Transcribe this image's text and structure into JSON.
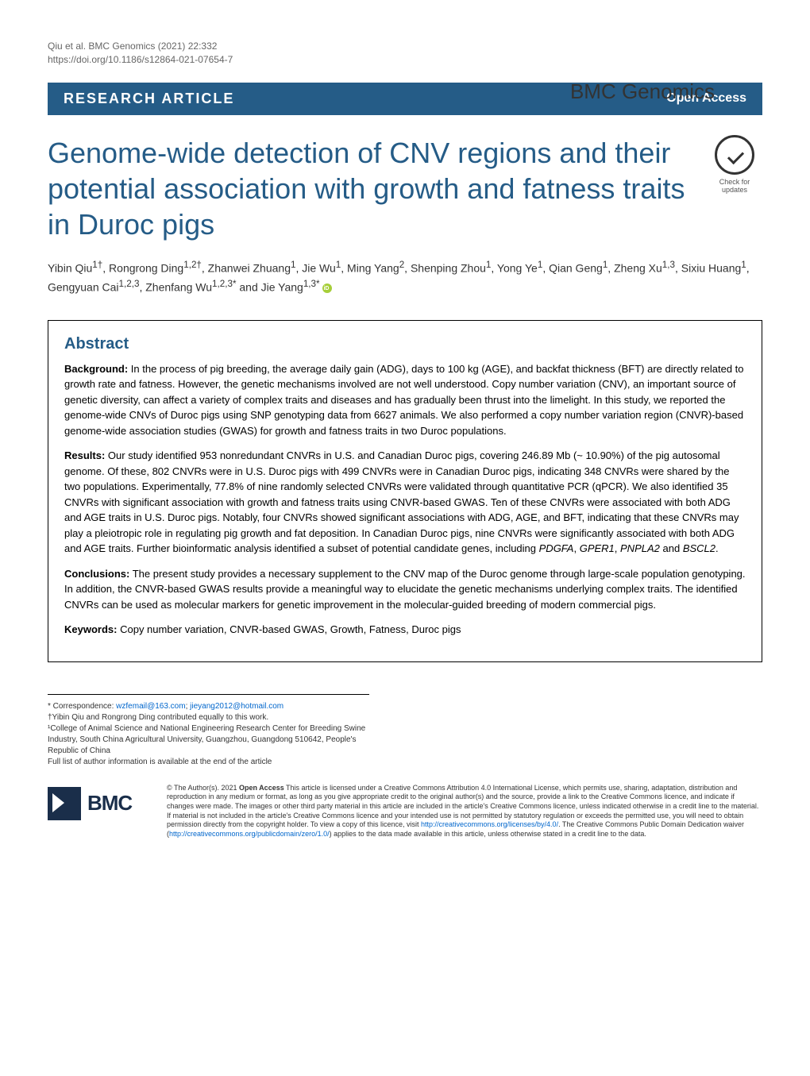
{
  "meta": {
    "citation": "Qiu et al. BMC Genomics          (2021) 22:332",
    "doi": "https://doi.org/10.1186/s12864-021-07654-7",
    "journal": "BMC Genomics"
  },
  "banner": {
    "type": "RESEARCH ARTICLE",
    "access": "Open Access"
  },
  "title": "Genome-wide detection of CNV regions and their potential association with growth and fatness traits in Duroc pigs",
  "check_updates": "Check for updates",
  "authors_html": "Yibin Qiu<sup>1†</sup>, Rongrong Ding<sup>1,2†</sup>, Zhanwei Zhuang<sup>1</sup>, Jie Wu<sup>1</sup>, Ming Yang<sup>2</sup>, Shenping Zhou<sup>1</sup>, Yong Ye<sup>1</sup>, Qian Geng<sup>1</sup>, Zheng Xu<sup>1,3</sup>, Sixiu Huang<sup>1</sup>, Gengyuan Cai<sup>1,2,3</sup>, Zhenfang Wu<sup>1,2,3*</sup> and Jie Yang<sup>1,3*</sup>",
  "abstract": {
    "heading": "Abstract",
    "background_label": "Background:",
    "background": "In the process of pig breeding, the average daily gain (ADG), days to 100 kg (AGE), and backfat thickness (BFT) are directly related to growth rate and fatness. However, the genetic mechanisms involved are not well understood. Copy number variation (CNV), an important source of genetic diversity, can affect a variety of complex traits and diseases and has gradually been thrust into the limelight. In this study, we reported the genome-wide CNVs of Duroc pigs using SNP genotyping data from 6627 animals. We also performed a copy number variation region (CNVR)-based genome-wide association studies (GWAS) for growth and fatness traits in two Duroc populations.",
    "results_label": "Results:",
    "results": "Our study identified 953 nonredundant CNVRs in U.S. and Canadian Duroc pigs, covering 246.89 Mb (~ 10.90%) of the pig autosomal genome. Of these, 802 CNVRs were in U.S. Duroc pigs with 499 CNVRs were in Canadian Duroc pigs, indicating 348 CNVRs were shared by the two populations. Experimentally, 77.8% of nine randomly selected CNVRs were validated through quantitative PCR (qPCR). We also identified 35 CNVRs with significant association with growth and fatness traits using CNVR-based GWAS. Ten of these CNVRs were associated with both ADG and AGE traits in U.S. Duroc pigs. Notably, four CNVRs showed significant associations with ADG, AGE, and BFT, indicating that these CNVRs may play a pleiotropic role in regulating pig growth and fat deposition. In Canadian Duroc pigs, nine CNVRs were significantly associated with both ADG and AGE traits. Further bioinformatic analysis identified a subset of potential candidate genes, including <i>PDGFA</i>, <i>GPER1</i>, <i>PNPLA2</i> and <i>BSCL2</i>.",
    "conclusions_label": "Conclusions:",
    "conclusions": "The present study provides a necessary supplement to the CNV map of the Duroc genome through large-scale population genotyping. In addition, the CNVR-based GWAS results provide a meaningful way to elucidate the genetic mechanisms underlying complex traits. The identified CNVRs can be used as molecular markers for genetic improvement in the molecular-guided breeding of modern commercial pigs.",
    "keywords_label": "Keywords:",
    "keywords": "Copy number variation, CNVR-based GWAS, Growth, Fatness, Duroc pigs"
  },
  "footnotes": {
    "correspondence_label": "* Correspondence: ",
    "email1": "wzfemail@163.com",
    "email2": "jieyang2012@hotmail.com",
    "equal": "†Yibin Qiu and Rongrong Ding contributed equally to this work.",
    "affil1": "¹College of Animal Science and National Engineering Research Center for Breeding Swine Industry, South China Agricultural University, Guangzhou, Guangdong 510642, People's Republic of China",
    "full_list": "Full list of author information is available at the end of the article"
  },
  "bmc_logo_text": "BMC",
  "license": {
    "text_html": "© The Author(s). 2021 <b>Open Access</b> This article is licensed under a Creative Commons Attribution 4.0 International License, which permits use, sharing, adaptation, distribution and reproduction in any medium or format, as long as you give appropriate credit to the original author(s) and the source, provide a link to the Creative Commons licence, and indicate if changes were made. The images or other third party material in this article are included in the article's Creative Commons licence, unless indicated otherwise in a credit line to the material. If material is not included in the article's Creative Commons licence and your intended use is not permitted by statutory regulation or exceeds the permitted use, you will need to obtain permission directly from the copyright holder. To view a copy of this licence, visit <a href='#'>http://creativecommons.org/licenses/by/4.0/</a>. The Creative Commons Public Domain Dedication waiver (<a href='#'>http://creativecommons.org/publicdomain/zero/1.0/</a>) applies to the data made available in this article, unless otherwise stated in a credit line to the data."
  },
  "colors": {
    "brand_blue": "#255c87",
    "text": "#000000",
    "meta_gray": "#666666",
    "link": "#0066cc"
  }
}
